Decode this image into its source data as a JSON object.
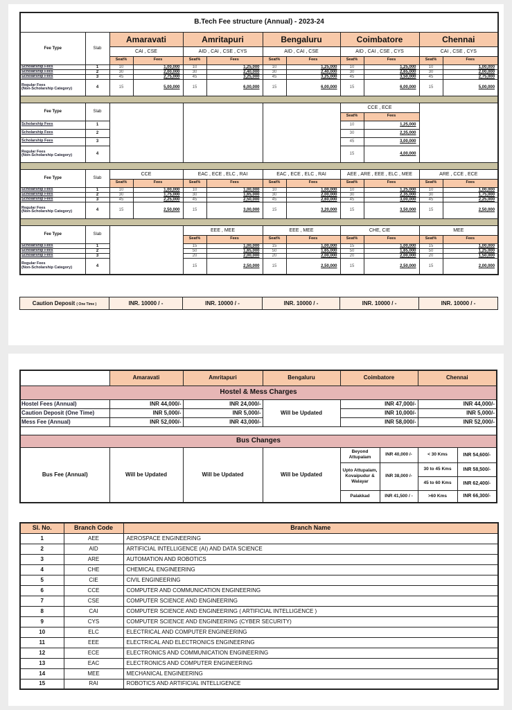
{
  "fee_structure": {
    "title": "B.Tech Fee structure (Annual) - 2023-24",
    "campuses": [
      "Amaravati",
      "Amritapuri",
      "Bengaluru",
      "Coimbatore",
      "Chennai"
    ],
    "fee_type_label": "Fee Type",
    "slab_label": "Slab",
    "seat_label": "Seat%",
    "fees_label": "Fees",
    "row_labels": [
      "Scholarship Fees",
      "Scholarship Fees",
      "Scholarship Fees",
      "Regular Fees"
    ],
    "regular_sub": "(Non-Scholarship Category)",
    "slabs": [
      "1",
      "2",
      "3",
      "4"
    ],
    "sections": [
      {
        "branches": [
          "CAI , CSE",
          "AID , CAI , CSE , CYS",
          "AID , CAI , CSE",
          "AID , CAI , CSE , CYS",
          "CAI , CSE , CYS"
        ],
        "values": [
          [
            [
              "10",
              "1,00,000"
            ],
            [
              "30",
              "2,00,000"
            ],
            [
              "45",
              "2,75,000"
            ],
            [
              "15",
              "5,00,000"
            ]
          ],
          [
            [
              "10",
              "1,25,000"
            ],
            [
              "30",
              "2,40,000"
            ],
            [
              "45",
              "3,25,000"
            ],
            [
              "15",
              "6,00,000"
            ]
          ],
          [
            [
              "10",
              "1,25,000"
            ],
            [
              "30",
              "2,40,000"
            ],
            [
              "45",
              "3,25,000"
            ],
            [
              "15",
              "6,00,000"
            ]
          ],
          [
            [
              "10",
              "1,25,000"
            ],
            [
              "30",
              "2,65,000"
            ],
            [
              "45",
              "3,50,000"
            ],
            [
              "15",
              "6,00,000"
            ]
          ],
          [
            [
              "10",
              "1,00,000"
            ],
            [
              "30",
              "2,00,000"
            ],
            [
              "45",
              "2,75,000"
            ],
            [
              "15",
              "5,00,000"
            ]
          ]
        ]
      },
      {
        "branches": [
          null,
          null,
          null,
          "CCE , ECE",
          null
        ],
        "values": [
          null,
          null,
          null,
          [
            [
              "10",
              "1,25,000"
            ],
            [
              "30",
              "2,35,000"
            ],
            [
              "45",
              "3,00,000"
            ],
            [
              "15",
              "4,00,000"
            ]
          ],
          null
        ]
      },
      {
        "branches": [
          "CCE",
          "EAC , ECE , ELC , RAI",
          "EAC , ECE , ELC , RAI",
          "AEE , ARE , EEE , ELC , MEE",
          "ARE , CCE , ECE"
        ],
        "values": [
          [
            [
              "10",
              "1,00,000"
            ],
            [
              "30",
              "1,75,000"
            ],
            [
              "45",
              "2,25,000"
            ],
            [
              "15",
              "2,50,000"
            ]
          ],
          [
            [
              "10",
              "1,00,000"
            ],
            [
              "30",
              "1,65,000"
            ],
            [
              "45",
              "2,50,000"
            ],
            [
              "15",
              "3,00,000"
            ]
          ],
          [
            [
              "10",
              "1,00,000"
            ],
            [
              "30",
              "2,00,000"
            ],
            [
              "45",
              "2,60,000"
            ],
            [
              "15",
              "3,20,000"
            ]
          ],
          [
            [
              "10",
              "1,25,000"
            ],
            [
              "30",
              "2,35,000"
            ],
            [
              "45",
              "3,00,000"
            ],
            [
              "15",
              "3,50,000"
            ]
          ],
          [
            [
              "10",
              "1,00,000"
            ],
            [
              "30",
              "1,75,000"
            ],
            [
              "45",
              "2,25,000"
            ],
            [
              "15",
              "2,50,000"
            ]
          ]
        ]
      },
      {
        "branches": [
          null,
          "EEE , MEE",
          "EEE , MEE",
          "CHE, CIE",
          "MEE"
        ],
        "values": [
          null,
          [
            [
              "15",
              "1,00,000"
            ],
            [
              "50",
              "1,65,000"
            ],
            [
              "20",
              "2,00,000"
            ],
            [
              "15",
              "2,50,000"
            ]
          ],
          [
            [
              "15",
              "1,00,000"
            ],
            [
              "50",
              "1,65,000"
            ],
            [
              "20",
              "2,00,000"
            ],
            [
              "15",
              "2,50,000"
            ]
          ],
          [
            [
              "15",
              "1,00,000"
            ],
            [
              "50",
              "1,65,000"
            ],
            [
              "20",
              "2,00,000"
            ],
            [
              "15",
              "2,50,000"
            ]
          ],
          [
            [
              "15",
              "1,00,000"
            ],
            [
              "50",
              "1,25,000"
            ],
            [
              "20",
              "1,50,000"
            ],
            [
              "15",
              "2,00,000"
            ]
          ]
        ]
      }
    ],
    "caution": {
      "label": "Caution Deposit",
      "label_sub": "( One Time )",
      "values": [
        "INR. 10000 / -",
        "INR. 10000 / -",
        "INR. 10000 / -",
        "INR. 10000 / -",
        "INR. 10000 / -"
      ]
    }
  },
  "hostel": {
    "campuses": [
      "Amaravati",
      "Amritapuri",
      "Bengaluru",
      "Coimbatore",
      "Chennai"
    ],
    "section_title": "Hostel & Mess Charges",
    "rows": [
      {
        "label": "Hostel Fees (Annual)",
        "values": [
          "INR 44,000/-",
          "INR 24,000/-",
          "INR 47,000/-",
          "INR 44,000/-"
        ]
      },
      {
        "label": "Caution Deposit (One Time)",
        "values": [
          "INR 5,000/-",
          "INR 5,000/-",
          "INR 10,000/-",
          "INR 5,000/-"
        ]
      },
      {
        "label": "Mess Fee (Annual)",
        "values": [
          "INR 52,000/-",
          "INR 43,000/-",
          "INR 58,000/-",
          "INR 52,000/-"
        ]
      }
    ],
    "bengaluru_note": "Will be Updated",
    "bus_title": "Bus Changes",
    "bus_label": "Bus Fee (Annual)",
    "bus_pending": [
      "Will be Updated",
      "Will be Updated",
      "Will be Updated"
    ],
    "coimbatore_bus": [
      {
        "place": "Beyond Attupalam",
        "fee": "INR 40,000 /-"
      },
      {
        "place": "Upto Attupalam, Kovaipudur & Walayar",
        "fee": "INR 38,000 /-"
      },
      {
        "place": "Palakkad",
        "fee": "INR 41,500 / -"
      }
    ],
    "chennai_bus": [
      {
        "range": "< 30 Kms",
        "fee": "INR 54,600/-"
      },
      {
        "range": "30 to 45 Kms",
        "fee": "INR 58,500/-"
      },
      {
        "range": "45 to 60 Kms",
        "fee": "INR 62,400/-"
      },
      {
        "range": ">60 Kms",
        "fee": "INR 66,300/-"
      }
    ]
  },
  "branches": {
    "headers": [
      "Sl. No.",
      "Branch Code",
      "Branch Name"
    ],
    "rows": [
      [
        "1",
        "AEE",
        "AEROSPACE ENGINEERING"
      ],
      [
        "2",
        "AID",
        "ARTIFICIAL INTELLIGENCE (AI)  AND DATA SCIENCE"
      ],
      [
        "3",
        "ARE",
        "AUTOMATION AND ROBOTICS"
      ],
      [
        "4",
        "CHE",
        "CHEMICAL ENGINEERING"
      ],
      [
        "5",
        "CIE",
        "CIVIL ENGINEERING"
      ],
      [
        "6",
        "CCE",
        "COMPUTER AND COMMUNICATION ENGINEERING"
      ],
      [
        "7",
        "CSE",
        "COMPUTER SCIENCE AND ENGINEERING"
      ],
      [
        "8",
        "CAI",
        "COMPUTER SCIENCE AND ENGINEERING ( ARTIFICIAL INTELLIGENCE )"
      ],
      [
        "9",
        "CYS",
        "COMPUTER SCIENCE AND ENGINEERING (CYBER SECURITY)"
      ],
      [
        "10",
        "ELC",
        "ELECTRICAL AND COMPUTER ENGINEERING"
      ],
      [
        "11",
        "EEE",
        "ELECTRICAL AND ELECTRONICS ENGINEERING"
      ],
      [
        "12",
        "ECE",
        "ELECTRONICS AND COMMUNICATION ENGINEERING"
      ],
      [
        "13",
        "EAC",
        "ELECTRONICS AND COMPUTER ENGINEERING"
      ],
      [
        "14",
        "MEE",
        "MECHANICAL ENGINEERING"
      ],
      [
        "15",
        "RAI",
        "ROBOTICS AND ARTIFICIAL INTELLIGENCE"
      ]
    ]
  }
}
